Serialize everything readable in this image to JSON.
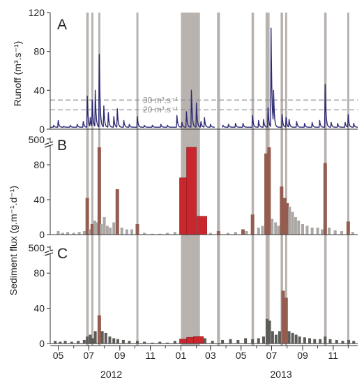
{
  "chart_data": {
    "type": "multi-panel time series",
    "x_unit": "month",
    "x_start": "2012-04-15",
    "x_end": "2013-12-20",
    "x_ticks": [
      {
        "date": "2012-05",
        "label": "05"
      },
      {
        "date": "2012-07",
        "label": "07"
      },
      {
        "date": "2012-09",
        "label": "09"
      },
      {
        "date": "2012-11",
        "label": "11"
      },
      {
        "date": "2013-01",
        "label": "01"
      },
      {
        "date": "2013-03",
        "label": "03"
      },
      {
        "date": "2013-05",
        "label": "05"
      },
      {
        "date": "2013-07",
        "label": "07"
      },
      {
        "date": "2013-09",
        "label": "09"
      },
      {
        "date": "2013-11",
        "label": "11"
      }
    ],
    "years": [
      {
        "label": "2012",
        "center": "2012-08-15"
      },
      {
        "label": "2013",
        "center": "2013-07-20"
      }
    ],
    "colors": {
      "runoff_line": "#2d2a75",
      "event_band": "#b9b3b0",
      "bar_base": "#aaa7a4",
      "bar_event": "#955c50",
      "bar_event_strong": "#c9262d",
      "bar_dark": "#5e5c59",
      "ref_line": "#8d8d8d"
    },
    "event_bands": [
      [
        "2012-06-26",
        "2012-07-01"
      ],
      [
        "2012-07-06",
        "2012-07-10"
      ],
      [
        "2012-07-20",
        "2012-07-24"
      ],
      [
        "2012-10-04",
        "2012-10-08"
      ],
      [
        "2013-01-01",
        "2013-02-08"
      ],
      [
        "2013-03-14",
        "2013-03-20"
      ],
      [
        "2013-05-22",
        "2013-05-27"
      ],
      [
        "2013-06-19",
        "2013-06-27"
      ],
      [
        "2013-07-19",
        "2013-07-24"
      ],
      [
        "2013-07-28",
        "2013-08-01"
      ],
      [
        "2013-10-14",
        "2013-10-19"
      ],
      [
        "2013-11-29",
        "2013-12-03"
      ]
    ],
    "panels": [
      {
        "letter": "A",
        "kind": "line",
        "ylabel": "Runoff (m³.s⁻¹)",
        "ylim": [
          0,
          120
        ],
        "yticks": [
          0,
          40,
          80,
          120
        ],
        "reference_lines": [
          {
            "value": 30,
            "label": "30 m³.s⁻¹"
          },
          {
            "value": 20,
            "label": "20 m³.s⁻¹"
          }
        ],
        "gap": [
          "2013-03-10",
          "2013-03-24"
        ],
        "baseline": 2,
        "peaks": [
          [
            "2012-04-22",
            4
          ],
          [
            "2012-05-01",
            9
          ],
          [
            "2012-05-12",
            3
          ],
          [
            "2012-05-25",
            4
          ],
          [
            "2012-06-08",
            5
          ],
          [
            "2012-06-20",
            8
          ],
          [
            "2012-06-28",
            34
          ],
          [
            "2012-07-04",
            12
          ],
          [
            "2012-07-08",
            30
          ],
          [
            "2012-07-14",
            40
          ],
          [
            "2012-07-22",
            77
          ],
          [
            "2012-07-31",
            24
          ],
          [
            "2012-08-09",
            17
          ],
          [
            "2012-08-20",
            13
          ],
          [
            "2012-08-27",
            21
          ],
          [
            "2012-09-09",
            9
          ],
          [
            "2012-09-20",
            5
          ],
          [
            "2012-10-06",
            13
          ],
          [
            "2012-10-20",
            4
          ],
          [
            "2012-11-05",
            4
          ],
          [
            "2012-11-22",
            5
          ],
          [
            "2012-12-05",
            4
          ],
          [
            "2012-12-24",
            14
          ],
          [
            "2013-01-03",
            7
          ],
          [
            "2013-01-12",
            18
          ],
          [
            "2013-01-22",
            40
          ],
          [
            "2013-02-01",
            27
          ],
          [
            "2013-02-10",
            8
          ],
          [
            "2013-02-17",
            12
          ],
          [
            "2013-03-01",
            5
          ],
          [
            "2013-03-26",
            4
          ],
          [
            "2013-04-06",
            5
          ],
          [
            "2013-04-20",
            6
          ],
          [
            "2013-05-05",
            6
          ],
          [
            "2013-05-24",
            14
          ],
          [
            "2013-06-05",
            9
          ],
          [
            "2013-06-15",
            10
          ],
          [
            "2013-06-24",
            22
          ],
          [
            "2013-06-30",
            104
          ],
          [
            "2013-07-05",
            40
          ],
          [
            "2013-07-22",
            15
          ],
          [
            "2013-07-30",
            12
          ],
          [
            "2013-08-05",
            10
          ],
          [
            "2013-08-20",
            8
          ],
          [
            "2013-09-05",
            6
          ],
          [
            "2013-09-20",
            7
          ],
          [
            "2013-10-05",
            9
          ],
          [
            "2013-10-16",
            46
          ],
          [
            "2013-10-28",
            7
          ],
          [
            "2013-11-10",
            6
          ],
          [
            "2013-11-25",
            7
          ],
          [
            "2013-12-01",
            15
          ],
          [
            "2013-12-12",
            6
          ]
        ]
      },
      {
        "letter": "B",
        "kind": "bars",
        "ylim": [
          0,
          100
        ],
        "yticks": [
          0,
          40,
          80
        ],
        "ybreak_label": "500",
        "ybreak_value": 500,
        "bars": [
          [
            "2012-05-01",
            4,
            "base"
          ],
          [
            "2012-05-10",
            2,
            "base"
          ],
          [
            "2012-05-20",
            3,
            "base"
          ],
          [
            "2012-06-01",
            2,
            "base"
          ],
          [
            "2012-06-12",
            3,
            "base"
          ],
          [
            "2012-06-22",
            4,
            "base"
          ],
          [
            "2012-06-28",
            42,
            "event"
          ],
          [
            "2012-07-03",
            6,
            "base"
          ],
          [
            "2012-07-08",
            12,
            "event"
          ],
          [
            "2012-07-13",
            16,
            "base"
          ],
          [
            "2012-07-17",
            14,
            "base"
          ],
          [
            "2012-07-22",
            100,
            "event"
          ],
          [
            "2012-07-26",
            12,
            "base"
          ],
          [
            "2012-08-01",
            20,
            "base"
          ],
          [
            "2012-08-07",
            10,
            "base"
          ],
          [
            "2012-08-13",
            8,
            "base"
          ],
          [
            "2012-08-20",
            14,
            "base"
          ],
          [
            "2012-08-27",
            52,
            "event"
          ],
          [
            "2012-09-05",
            8,
            "base"
          ],
          [
            "2012-09-15",
            6,
            "base"
          ],
          [
            "2012-09-25",
            6,
            "base"
          ],
          [
            "2012-10-06",
            12,
            "event"
          ],
          [
            "2012-10-20",
            2,
            "base"
          ],
          [
            "2012-11-05",
            1,
            "base"
          ],
          [
            "2012-11-20",
            1,
            "base"
          ],
          [
            "2012-12-05",
            2,
            "base"
          ],
          [
            "2012-12-20",
            3,
            "base"
          ],
          [
            "2013-01-08",
            65,
            "strong"
          ],
          [
            "2013-01-22",
            100,
            "strong"
          ],
          [
            "2013-02-12",
            21,
            "strong"
          ],
          [
            "2013-03-01",
            2,
            "base"
          ],
          [
            "2013-03-17",
            4,
            "event"
          ],
          [
            "2013-04-05",
            2,
            "base"
          ],
          [
            "2013-04-20",
            3,
            "base"
          ],
          [
            "2013-05-05",
            6,
            "event"
          ],
          [
            "2013-05-12",
            4,
            "base"
          ],
          [
            "2013-05-24",
            23,
            "event"
          ],
          [
            "2013-06-05",
            8,
            "base"
          ],
          [
            "2013-06-13",
            10,
            "base"
          ],
          [
            "2013-06-20",
            93,
            "event"
          ],
          [
            "2013-06-26",
            100,
            "event"
          ],
          [
            "2013-07-02",
            18,
            "base"
          ],
          [
            "2013-07-09",
            14,
            "base"
          ],
          [
            "2013-07-15",
            10,
            "base"
          ],
          [
            "2013-07-21",
            55,
            "event"
          ],
          [
            "2013-07-27",
            42,
            "event"
          ],
          [
            "2013-08-01",
            36,
            "event"
          ],
          [
            "2013-08-06",
            32,
            "base"
          ],
          [
            "2013-08-12",
            26,
            "base"
          ],
          [
            "2013-08-18",
            20,
            "base"
          ],
          [
            "2013-08-24",
            16,
            "base"
          ],
          [
            "2013-09-01",
            12,
            "base"
          ],
          [
            "2013-09-10",
            10,
            "base"
          ],
          [
            "2013-09-20",
            8,
            "base"
          ],
          [
            "2013-10-01",
            8,
            "base"
          ],
          [
            "2013-10-10",
            6,
            "base"
          ],
          [
            "2013-10-16",
            82,
            "event"
          ],
          [
            "2013-10-24",
            8,
            "base"
          ],
          [
            "2013-11-05",
            5,
            "base"
          ],
          [
            "2013-11-18",
            4,
            "base"
          ],
          [
            "2013-12-01",
            15,
            "event"
          ],
          [
            "2013-12-10",
            3,
            "base"
          ]
        ]
      },
      {
        "letter": "C",
        "kind": "bars",
        "ylim": [
          0,
          100
        ],
        "yticks": [
          0,
          40,
          80
        ],
        "ybreak_label": "500",
        "ybreak_value": 500,
        "bars": [
          [
            "2012-04-25",
            3,
            "dark"
          ],
          [
            "2012-05-05",
            2,
            "dark"
          ],
          [
            "2012-05-15",
            3,
            "dark"
          ],
          [
            "2012-05-28",
            2,
            "dark"
          ],
          [
            "2012-06-10",
            3,
            "dark"
          ],
          [
            "2012-06-22",
            4,
            "dark"
          ],
          [
            "2012-06-28",
            8,
            "dark"
          ],
          [
            "2012-07-04",
            10,
            "dark"
          ],
          [
            "2012-07-09",
            6,
            "dark"
          ],
          [
            "2012-07-14",
            14,
            "dark"
          ],
          [
            "2012-07-22",
            32,
            "event"
          ],
          [
            "2012-07-28",
            14,
            "dark"
          ],
          [
            "2012-08-04",
            12,
            "dark"
          ],
          [
            "2012-08-12",
            8,
            "dark"
          ],
          [
            "2012-08-20",
            6,
            "dark"
          ],
          [
            "2012-08-28",
            5,
            "dark"
          ],
          [
            "2012-09-08",
            4,
            "dark"
          ],
          [
            "2012-09-20",
            3,
            "dark"
          ],
          [
            "2012-10-06",
            3,
            "dark"
          ],
          [
            "2012-10-20",
            2,
            "dark"
          ],
          [
            "2012-11-05",
            1,
            "dark"
          ],
          [
            "2012-11-20",
            2,
            "dark"
          ],
          [
            "2012-12-05",
            1,
            "dark"
          ],
          [
            "2012-12-20",
            3,
            "dark"
          ],
          [
            "2013-01-08",
            5,
            "strong"
          ],
          [
            "2013-01-22",
            7,
            "strong"
          ],
          [
            "2013-02-05",
            8,
            "strong"
          ],
          [
            "2013-02-18",
            6,
            "dark"
          ],
          [
            "2013-03-05",
            3,
            "dark"
          ],
          [
            "2013-03-25",
            4,
            "dark"
          ],
          [
            "2013-04-10",
            5,
            "dark"
          ],
          [
            "2013-04-25",
            4,
            "dark"
          ],
          [
            "2013-05-10",
            6,
            "dark"
          ],
          [
            "2013-05-24",
            5,
            "dark"
          ],
          [
            "2013-06-05",
            6,
            "dark"
          ],
          [
            "2013-06-15",
            8,
            "dark"
          ],
          [
            "2013-06-22",
            28,
            "dark"
          ],
          [
            "2013-06-27",
            26,
            "dark"
          ],
          [
            "2013-07-03",
            14,
            "dark"
          ],
          [
            "2013-07-10",
            10,
            "dark"
          ],
          [
            "2013-07-17",
            14,
            "dark"
          ],
          [
            "2013-07-24",
            60,
            "event"
          ],
          [
            "2013-07-30",
            52,
            "event"
          ],
          [
            "2013-08-05",
            14,
            "dark"
          ],
          [
            "2013-08-12",
            12,
            "dark"
          ],
          [
            "2013-08-19",
            10,
            "dark"
          ],
          [
            "2013-08-26",
            8,
            "dark"
          ],
          [
            "2013-09-05",
            7,
            "dark"
          ],
          [
            "2013-09-15",
            6,
            "dark"
          ],
          [
            "2013-09-25",
            5,
            "dark"
          ],
          [
            "2013-10-06",
            5,
            "dark"
          ],
          [
            "2013-10-16",
            8,
            "dark"
          ],
          [
            "2013-10-26",
            5,
            "dark"
          ],
          [
            "2013-11-08",
            4,
            "dark"
          ],
          [
            "2013-11-20",
            3,
            "dark"
          ],
          [
            "2013-12-02",
            4,
            "dark"
          ],
          [
            "2013-12-12",
            3,
            "dark"
          ]
        ]
      }
    ],
    "shared_ylabel": "Sediment flux (g.m⁻¹.d⁻¹)"
  }
}
